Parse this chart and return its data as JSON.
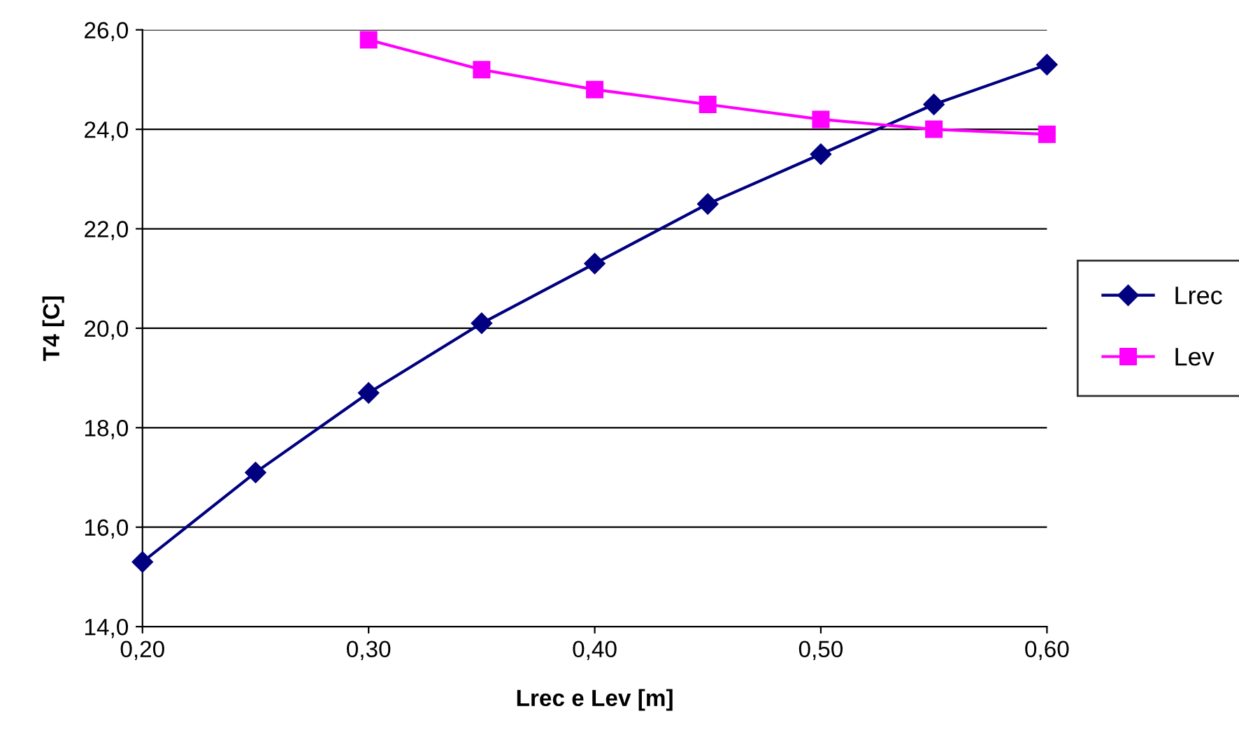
{
  "chart_data": {
    "type": "line",
    "xlabel": "Lrec e Lev [m]",
    "ylabel": "T4 [C]",
    "xlim": [
      0.2,
      0.6
    ],
    "xticks": [
      {
        "value": 0.2,
        "label": "0,20"
      },
      {
        "value": 0.3,
        "label": "0,30"
      },
      {
        "value": 0.4,
        "label": "0,40"
      },
      {
        "value": 0.5,
        "label": "0,50"
      },
      {
        "value": 0.6,
        "label": "0,60"
      }
    ],
    "ylim": [
      14,
      26
    ],
    "yticks": [
      {
        "value": 14,
        "label": "14,0"
      },
      {
        "value": 16,
        "label": "16,0"
      },
      {
        "value": 18,
        "label": "18,0"
      },
      {
        "value": 20,
        "label": "20,0"
      },
      {
        "value": 22,
        "label": "22,0"
      },
      {
        "value": 24,
        "label": "24,0"
      },
      {
        "value": 26,
        "label": "26,0"
      }
    ],
    "grid": "y",
    "legend": "right",
    "series": [
      {
        "name": "Lrec",
        "color": "#000080",
        "marker": "diamond",
        "x": [
          0.2,
          0.25,
          0.3,
          0.35,
          0.4,
          0.45,
          0.5,
          0.55,
          0.6
        ],
        "values": [
          15.3,
          17.1,
          18.7,
          20.1,
          21.3,
          22.5,
          23.5,
          24.5,
          25.3
        ]
      },
      {
        "name": "Lev",
        "color": "#ff00ff",
        "marker": "square",
        "x": [
          0.3,
          0.35,
          0.4,
          0.45,
          0.5,
          0.55,
          0.6
        ],
        "values": [
          25.8,
          25.2,
          24.8,
          24.5,
          24.2,
          24.0,
          23.9
        ]
      }
    ]
  }
}
